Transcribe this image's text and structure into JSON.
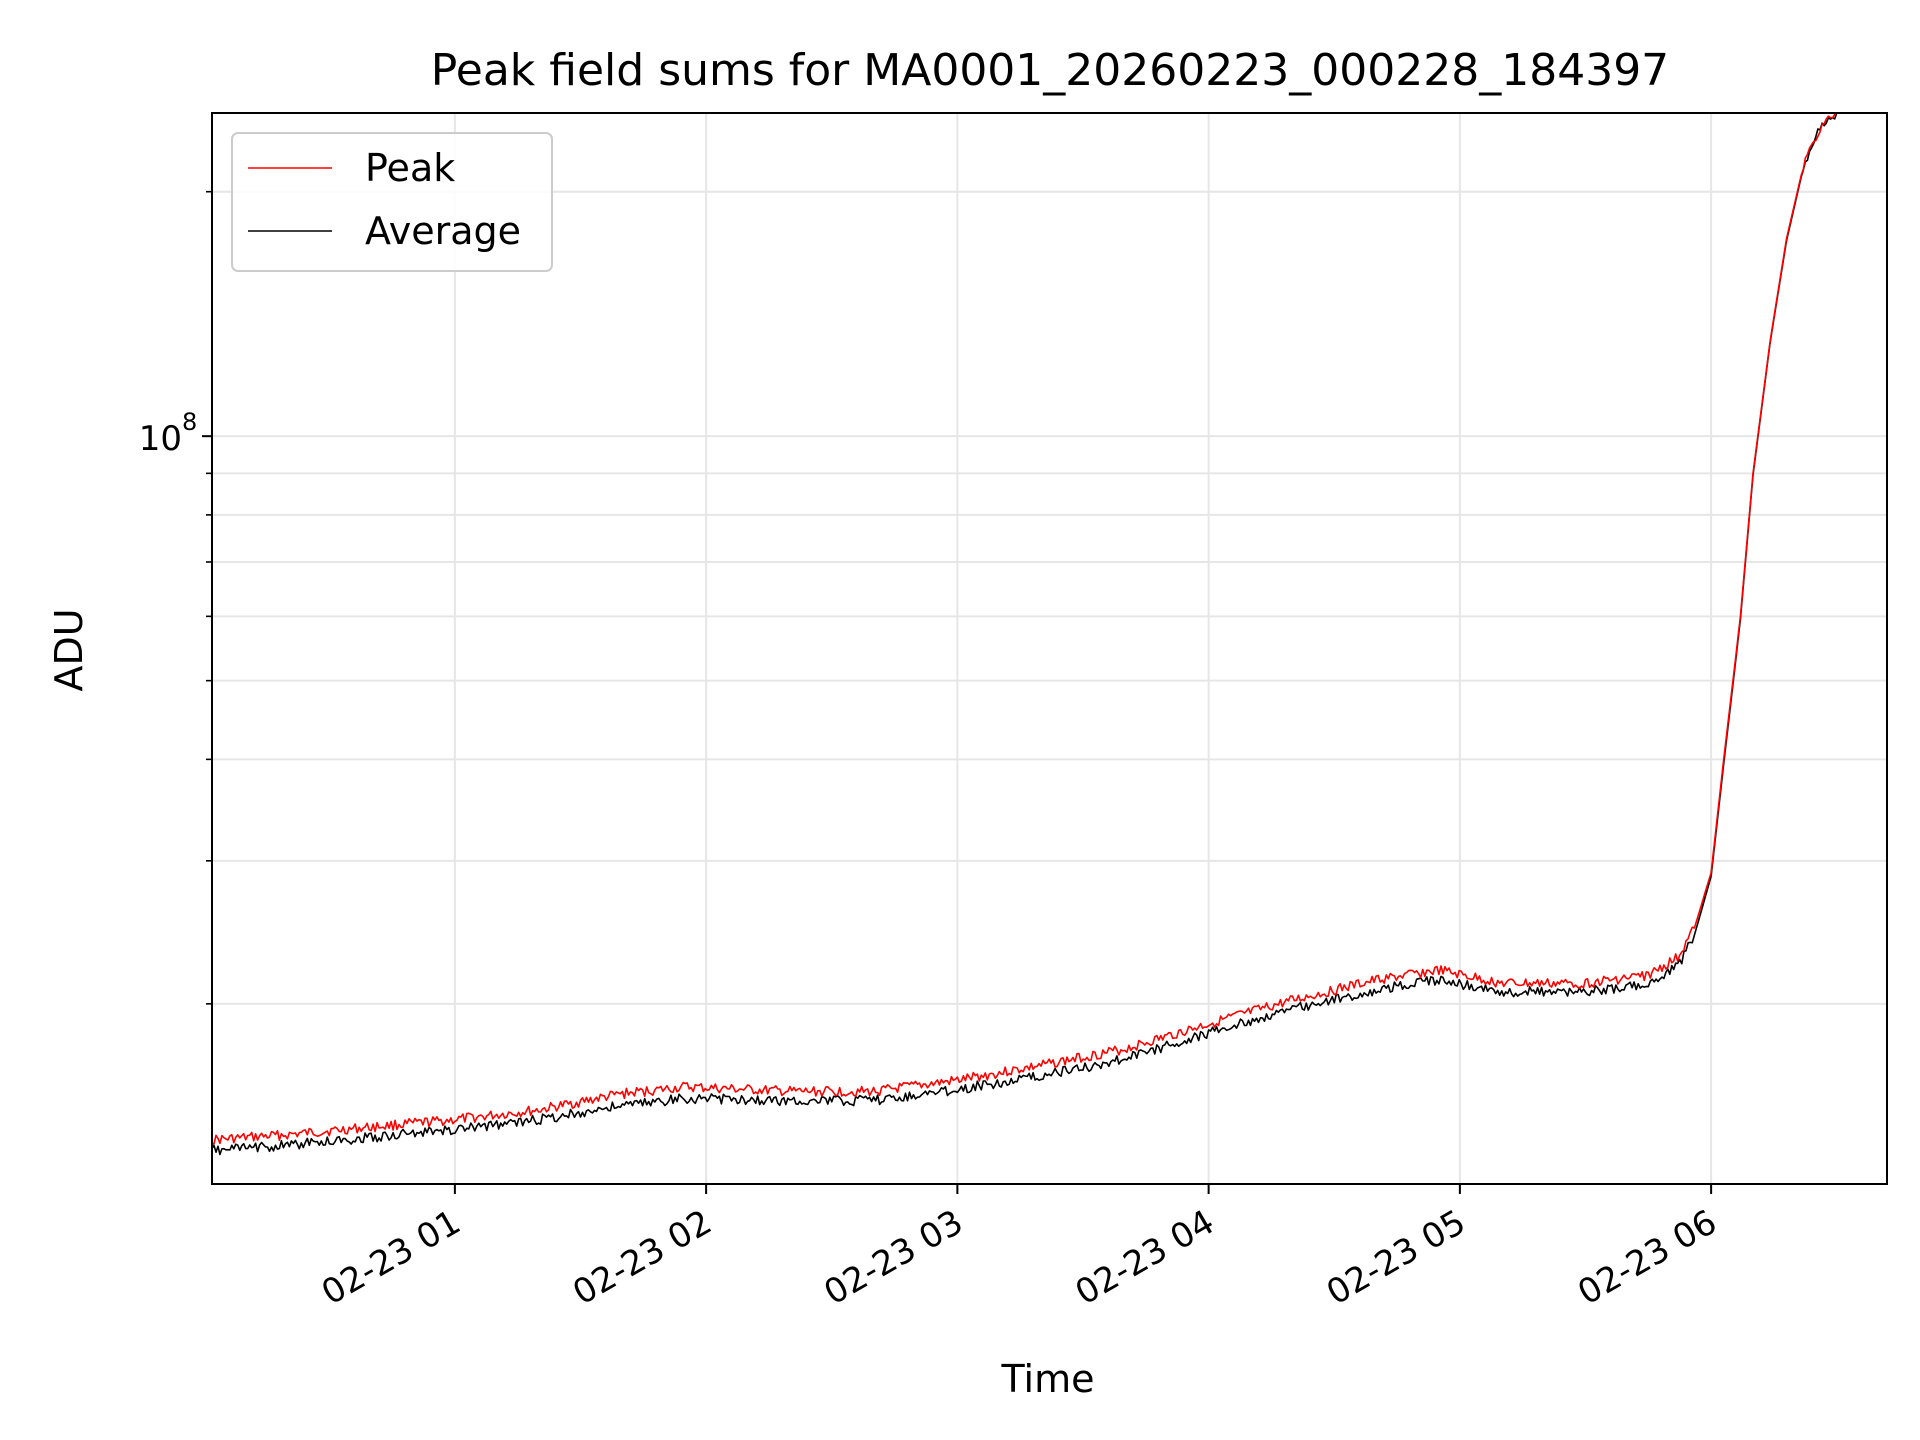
{
  "chart_data": {
    "type": "line",
    "title": "Peak field sums for MA0001_20260223_000228_184397",
    "xlabel": "Time",
    "ylabel": "ADU",
    "yscale": "log",
    "grid": true,
    "legend_position": "top-left",
    "xlim": [
      "2026-02-23 00:02",
      "2026-02-23 06:42"
    ],
    "ylim": [
      12000000,
      250000000
    ],
    "x_ticks": [
      {
        "value": "2026-02-23 01:00",
        "label": "02-23 01"
      },
      {
        "value": "2026-02-23 02:00",
        "label": "02-23 02"
      },
      {
        "value": "2026-02-23 03:00",
        "label": "02-23 03"
      },
      {
        "value": "2026-02-23 04:00",
        "label": "02-23 04"
      },
      {
        "value": "2026-02-23 05:00",
        "label": "02-23 05"
      },
      {
        "value": "2026-02-23 06:00",
        "label": "02-23 06"
      }
    ],
    "y_major_ticks": [
      {
        "value": 100000000,
        "base": "10",
        "exponent": "8"
      }
    ],
    "y_minor_ticks": [
      20000000,
      30000000,
      40000000,
      50000000,
      60000000,
      70000000,
      80000000,
      90000000,
      200000000
    ],
    "series": [
      {
        "name": "Peak",
        "color": "#ff0000",
        "x": [
          "2026-02-23 00:02",
          "2026-02-23 00:20",
          "2026-02-23 00:40",
          "2026-02-23 01:00",
          "2026-02-23 01:20",
          "2026-02-23 01:40",
          "2026-02-23 01:55",
          "2026-02-23 02:20",
          "2026-02-23 02:40",
          "2026-02-23 03:00",
          "2026-02-23 03:20",
          "2026-02-23 03:40",
          "2026-02-23 04:00",
          "2026-02-23 04:20",
          "2026-02-23 04:40",
          "2026-02-23 04:55",
          "2026-02-23 05:10",
          "2026-02-23 05:30",
          "2026-02-23 05:45",
          "2026-02-23 05:52",
          "2026-02-23 05:56",
          "2026-02-23 06:00",
          "2026-02-23 06:03",
          "2026-02-23 06:07",
          "2026-02-23 06:10",
          "2026-02-23 06:14",
          "2026-02-23 06:18",
          "2026-02-23 06:22",
          "2026-02-23 06:26",
          "2026-02-23 06:30"
        ],
        "y": [
          13600000,
          13800000,
          14100000,
          14400000,
          14800000,
          15500000,
          15800000,
          15600000,
          15600000,
          16100000,
          16800000,
          17600000,
          18900000,
          20200000,
          21400000,
          22000000,
          21200000,
          21200000,
          21700000,
          22800000,
          24800000,
          29000000,
          40000000,
          60000000,
          90000000,
          130000000,
          175000000,
          215000000,
          240000000,
          250000000
        ]
      },
      {
        "name": "Average",
        "color": "#000000",
        "x": [
          "2026-02-23 00:02",
          "2026-02-23 00:20",
          "2026-02-23 00:40",
          "2026-02-23 01:00",
          "2026-02-23 01:20",
          "2026-02-23 01:40",
          "2026-02-23 01:55",
          "2026-02-23 02:20",
          "2026-02-23 02:40",
          "2026-02-23 03:00",
          "2026-02-23 03:20",
          "2026-02-23 03:40",
          "2026-02-23 04:00",
          "2026-02-23 04:20",
          "2026-02-23 04:40",
          "2026-02-23 04:55",
          "2026-02-23 05:10",
          "2026-02-23 05:30",
          "2026-02-23 05:45",
          "2026-02-23 05:52",
          "2026-02-23 05:56",
          "2026-02-23 06:00",
          "2026-02-23 06:03",
          "2026-02-23 06:07",
          "2026-02-23 06:10",
          "2026-02-23 06:14",
          "2026-02-23 06:18",
          "2026-02-23 06:22",
          "2026-02-23 06:26",
          "2026-02-23 06:30"
        ],
        "y": [
          13200000,
          13400000,
          13700000,
          14000000,
          14400000,
          15000000,
          15300000,
          15200000,
          15200000,
          15700000,
          16300000,
          17100000,
          18400000,
          19700000,
          20800000,
          21400000,
          20700000,
          20700000,
          21100000,
          22200000,
          24300000,
          28700000,
          39500000,
          59500000,
          89500000,
          129500000,
          174000000,
          214000000,
          239500000,
          250000000
        ]
      }
    ]
  }
}
